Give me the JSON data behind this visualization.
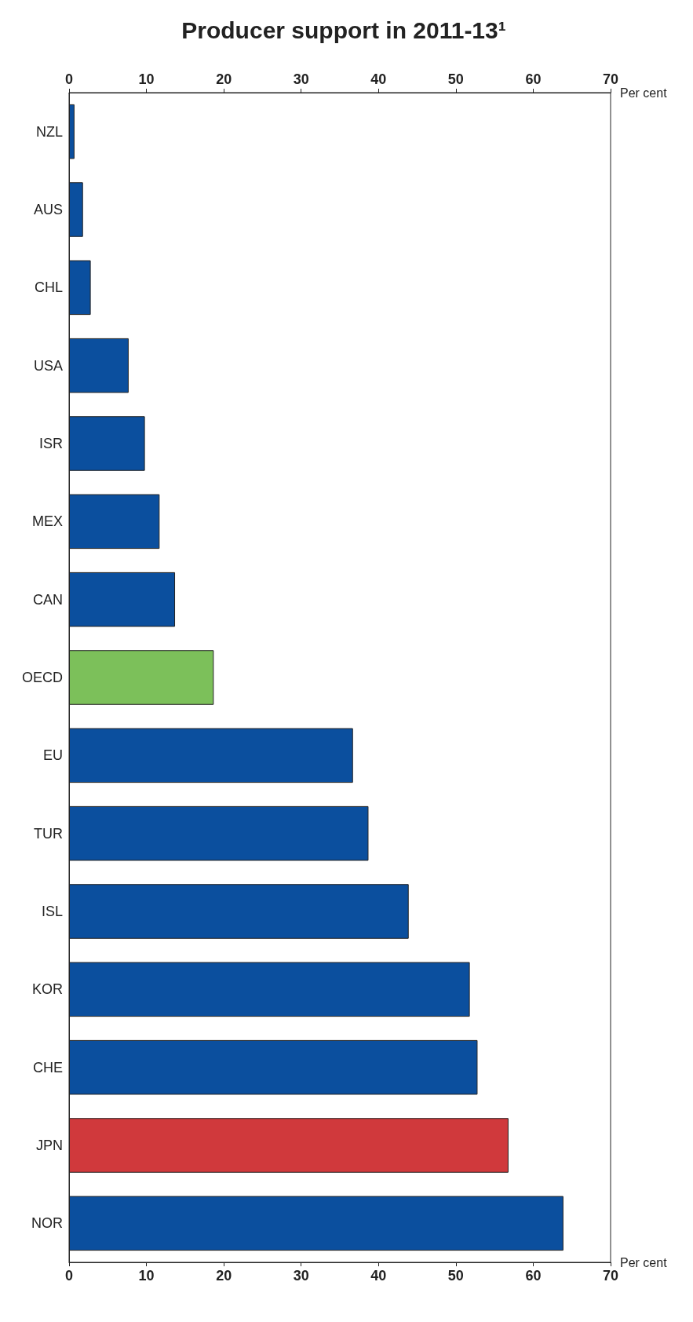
{
  "chart_data": {
    "type": "bar",
    "title": "Producer support in 2011-13¹",
    "orientation": "horizontal",
    "xlabel": "Per cent",
    "x2label": "Per cent",
    "categories": [
      "NZL",
      "AUS",
      "CHL",
      "USA",
      "ISR",
      "MEX",
      "CAN",
      "OECD",
      "EU",
      "TUR",
      "ISL",
      "KOR",
      "CHE",
      "JPN",
      "NOR"
    ],
    "values": [
      0.7,
      1.8,
      2.8,
      7.7,
      9.8,
      11.7,
      13.7,
      18.7,
      36.7,
      38.7,
      43.9,
      51.8,
      52.8,
      56.8,
      63.9
    ],
    "colors": [
      "#0b4f9e",
      "#0b4f9e",
      "#0b4f9e",
      "#0b4f9e",
      "#0b4f9e",
      "#0b4f9e",
      "#0b4f9e",
      "#7cc05a",
      "#0b4f9e",
      "#0b4f9e",
      "#0b4f9e",
      "#0b4f9e",
      "#0b4f9e",
      "#d0393c",
      "#0b4f9e"
    ],
    "xlim": [
      0,
      70
    ],
    "xticks": [
      0,
      10,
      20,
      30,
      40,
      50,
      60,
      70
    ],
    "x2lim": [
      0,
      70
    ],
    "x2ticks": [
      0,
      10,
      20,
      30,
      40,
      50,
      60,
      70
    ],
    "grid": false
  }
}
